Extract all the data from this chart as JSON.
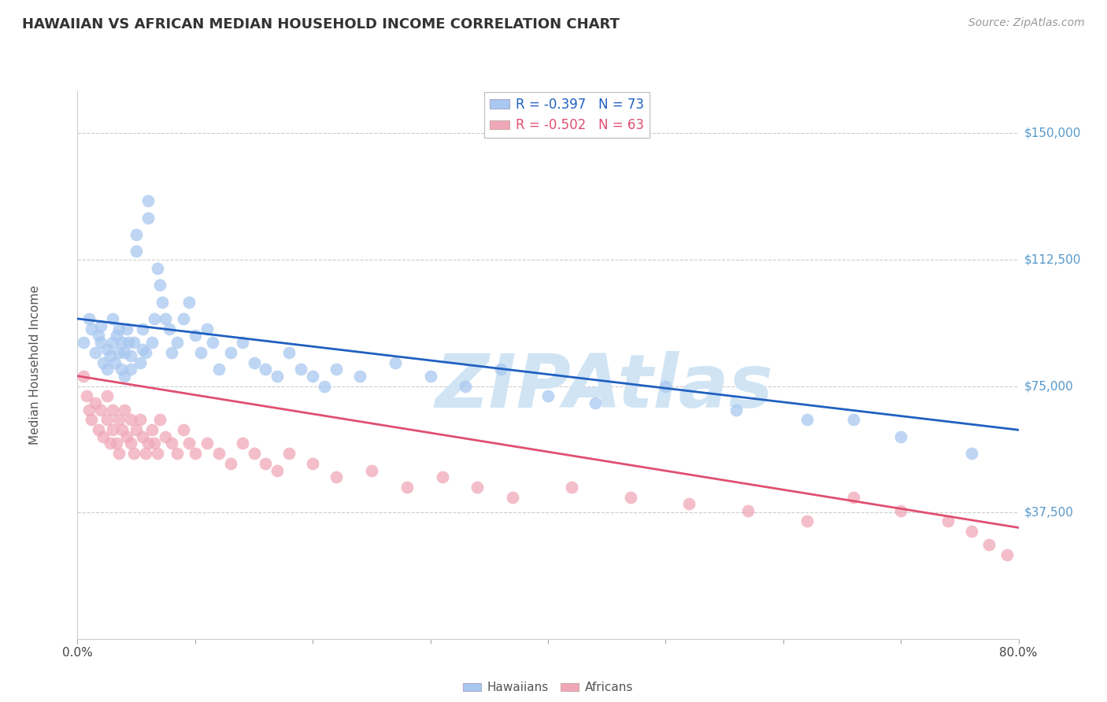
{
  "title": "HAWAIIAN VS AFRICAN MEDIAN HOUSEHOLD INCOME CORRELATION CHART",
  "source": "Source: ZipAtlas.com",
  "ylabel": "Median Household Income",
  "yticks": [
    0,
    37500,
    75000,
    112500,
    150000
  ],
  "ytick_labels": [
    "",
    "$37,500",
    "$75,000",
    "$112,500",
    "$150,000"
  ],
  "xlim": [
    0,
    0.8
  ],
  "ylim": [
    0,
    162500
  ],
  "hawaiian_color": "#a8c8f0",
  "african_color": "#f0a8b8",
  "hawaiian_line_color": "#2060c0",
  "african_line_color": "#e05070",
  "watermark": "ZIPAtlas",
  "watermark_color": "#d0e4f4",
  "background_color": "#ffffff",
  "grid_color": "#cccccc",
  "title_color": "#333333",
  "source_color": "#999999",
  "legend_label1": "R = -0.397   N = 73",
  "legend_label2": "R = -0.502   N = 63",
  "hawaiians_x": [
    0.005,
    0.01,
    0.012,
    0.015,
    0.018,
    0.02,
    0.02,
    0.022,
    0.025,
    0.025,
    0.028,
    0.03,
    0.03,
    0.032,
    0.033,
    0.035,
    0.035,
    0.037,
    0.038,
    0.04,
    0.04,
    0.042,
    0.043,
    0.045,
    0.045,
    0.048,
    0.05,
    0.05,
    0.053,
    0.055,
    0.055,
    0.058,
    0.06,
    0.06,
    0.063,
    0.065,
    0.068,
    0.07,
    0.072,
    0.075,
    0.078,
    0.08,
    0.085,
    0.09,
    0.095,
    0.1,
    0.105,
    0.11,
    0.115,
    0.12,
    0.13,
    0.14,
    0.15,
    0.16,
    0.17,
    0.18,
    0.19,
    0.2,
    0.21,
    0.22,
    0.24,
    0.27,
    0.3,
    0.33,
    0.36,
    0.4,
    0.44,
    0.5,
    0.56,
    0.62,
    0.66,
    0.7,
    0.76
  ],
  "hawaiians_y": [
    88000,
    95000,
    92000,
    85000,
    90000,
    93000,
    88000,
    82000,
    86000,
    80000,
    84000,
    95000,
    88000,
    82000,
    90000,
    85000,
    92000,
    80000,
    88000,
    85000,
    78000,
    92000,
    88000,
    84000,
    80000,
    88000,
    115000,
    120000,
    82000,
    86000,
    92000,
    85000,
    130000,
    125000,
    88000,
    95000,
    110000,
    105000,
    100000,
    95000,
    92000,
    85000,
    88000,
    95000,
    100000,
    90000,
    85000,
    92000,
    88000,
    80000,
    85000,
    88000,
    82000,
    80000,
    78000,
    85000,
    80000,
    78000,
    75000,
    80000,
    78000,
    82000,
    78000,
    75000,
    80000,
    72000,
    70000,
    75000,
    68000,
    65000,
    65000,
    60000,
    55000
  ],
  "africans_x": [
    0.005,
    0.008,
    0.01,
    0.012,
    0.015,
    0.018,
    0.02,
    0.022,
    0.025,
    0.025,
    0.028,
    0.03,
    0.03,
    0.033,
    0.035,
    0.035,
    0.038,
    0.04,
    0.042,
    0.045,
    0.045,
    0.048,
    0.05,
    0.053,
    0.055,
    0.058,
    0.06,
    0.063,
    0.065,
    0.068,
    0.07,
    0.075,
    0.08,
    0.085,
    0.09,
    0.095,
    0.1,
    0.11,
    0.12,
    0.13,
    0.14,
    0.15,
    0.16,
    0.17,
    0.18,
    0.2,
    0.22,
    0.25,
    0.28,
    0.31,
    0.34,
    0.37,
    0.42,
    0.47,
    0.52,
    0.57,
    0.62,
    0.66,
    0.7,
    0.74,
    0.76,
    0.775,
    0.79
  ],
  "africans_y": [
    78000,
    72000,
    68000,
    65000,
    70000,
    62000,
    68000,
    60000,
    72000,
    65000,
    58000,
    68000,
    62000,
    58000,
    65000,
    55000,
    62000,
    68000,
    60000,
    65000,
    58000,
    55000,
    62000,
    65000,
    60000,
    55000,
    58000,
    62000,
    58000,
    55000,
    65000,
    60000,
    58000,
    55000,
    62000,
    58000,
    55000,
    58000,
    55000,
    52000,
    58000,
    55000,
    52000,
    50000,
    55000,
    52000,
    48000,
    50000,
    45000,
    48000,
    45000,
    42000,
    45000,
    42000,
    40000,
    38000,
    35000,
    42000,
    38000,
    35000,
    32000,
    28000,
    25000
  ]
}
